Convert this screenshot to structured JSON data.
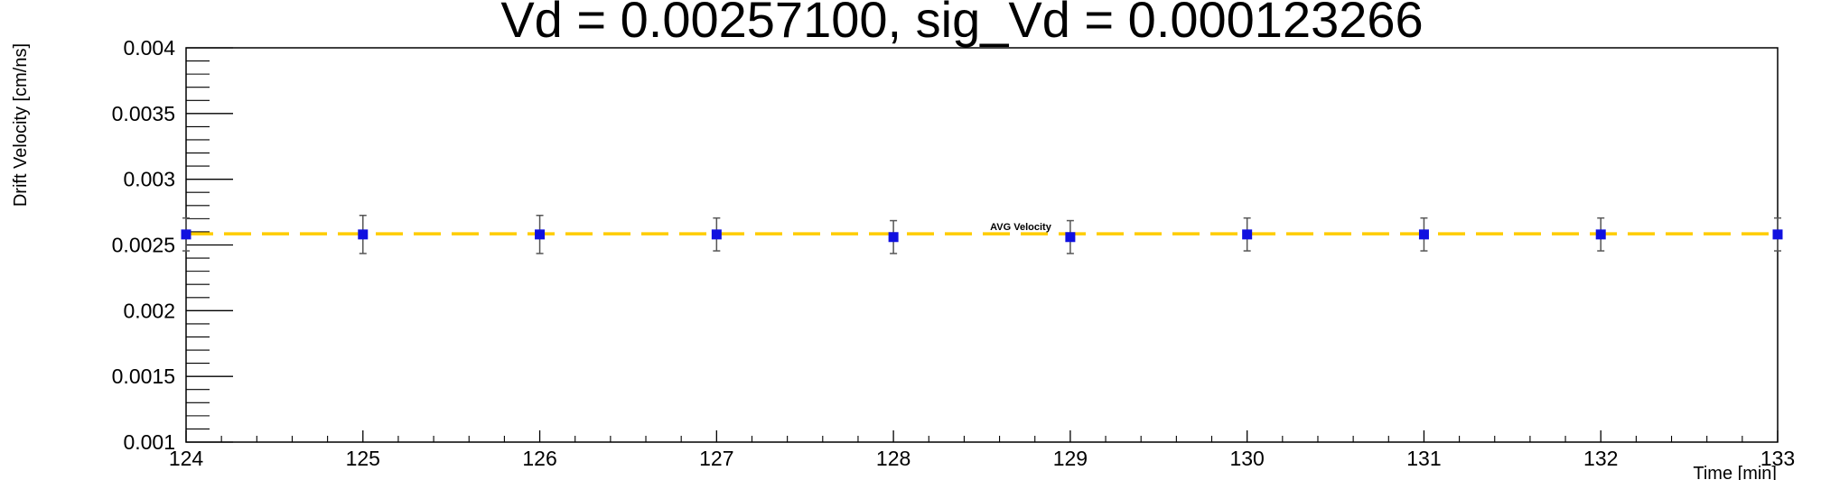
{
  "chart_data": {
    "type": "scatter",
    "title": "Vd = 0.00257100, sig_Vd = 0.000123266",
    "xlabel": "Time [min]",
    "ylabel": "Drift Velocity [cm/ns]",
    "xlim": [
      124,
      133
    ],
    "ylim": [
      0.001,
      0.004
    ],
    "x_ticks": [
      124,
      125,
      126,
      127,
      128,
      129,
      130,
      131,
      132,
      133
    ],
    "x_tick_labels": [
      "124",
      "125",
      "126",
      "127",
      "128",
      "129",
      "130",
      "131",
      "132",
      "133"
    ],
    "y_ticks": [
      0.001,
      0.0015,
      0.002,
      0.0025,
      0.003,
      0.0035,
      0.004
    ],
    "y_tick_labels": [
      "0.001",
      "0.0015",
      "0.002",
      "0.0025",
      "0.003",
      "0.0035",
      "0.004"
    ],
    "grid": false,
    "series": [
      {
        "x": [
          124,
          125,
          126,
          127,
          128,
          129,
          130,
          131,
          132,
          133
        ],
        "y": [
          0.00258,
          0.00258,
          0.00258,
          0.00258,
          0.00256,
          0.00256,
          0.00258,
          0.00258,
          0.00258,
          0.00258
        ],
        "yerr": [
          0.000125,
          0.000145,
          0.000145,
          0.000125,
          0.000125,
          0.000125,
          0.000125,
          0.000125,
          0.000125,
          0.000125
        ],
        "color": "#1010e0",
        "error_color": "#555555"
      }
    ],
    "reference_line": {
      "label": "AVG Velocity",
      "y": 0.002585,
      "color": "#ffcc00",
      "style": "dashed"
    }
  }
}
